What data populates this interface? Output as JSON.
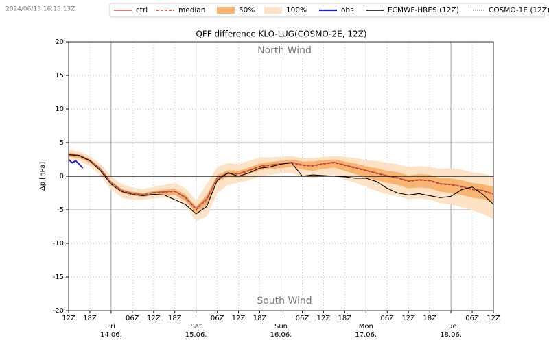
{
  "chart_data": {
    "type": "line",
    "timestamp": "2024/06/13 16:15:13Z",
    "title": "QFF difference KLO-LUG(COSMO-2E, 12Z)",
    "y_label": "Δp [hPa]",
    "annotations": [
      "North Wind",
      "South Wind"
    ],
    "xlim": [
      0,
      120
    ],
    "ylim": [
      -20,
      20
    ],
    "yticks": [
      -20,
      -15,
      -10,
      -5,
      0,
      5,
      10,
      15,
      20
    ],
    "ref_lines": [
      -5,
      5
    ],
    "zero_line": 0,
    "grid": true,
    "legend": "top-right",
    "xticks": [
      {
        "value": 0,
        "label": "12Z"
      },
      {
        "value": 6,
        "label": "18Z"
      },
      {
        "value": 12,
        "label": "Fri",
        "date": "14.06."
      },
      {
        "value": 18,
        "label": "06Z"
      },
      {
        "value": 24,
        "label": "12Z"
      },
      {
        "value": 30,
        "label": "18Z"
      },
      {
        "value": 36,
        "label": "Sat",
        "date": "15.06."
      },
      {
        "value": 42,
        "label": "06Z"
      },
      {
        "value": 48,
        "label": "12Z"
      },
      {
        "value": 54,
        "label": "18Z"
      },
      {
        "value": 60,
        "label": "Sun",
        "date": "16.06."
      },
      {
        "value": 66,
        "label": "06Z"
      },
      {
        "value": 72,
        "label": "12Z"
      },
      {
        "value": 78,
        "label": "18Z"
      },
      {
        "value": 84,
        "label": "Mon",
        "date": "17.06."
      },
      {
        "value": 90,
        "label": "06Z"
      },
      {
        "value": 96,
        "label": "12Z"
      },
      {
        "value": 102,
        "label": "18Z"
      },
      {
        "value": 108,
        "label": "Tue",
        "date": "18.06."
      },
      {
        "value": 114,
        "label": "06Z"
      },
      {
        "value": 120,
        "label": "12Z"
      }
    ],
    "x": [
      0,
      3,
      6,
      9,
      12,
      15,
      18,
      21,
      24,
      27,
      30,
      33,
      36,
      39,
      42,
      45,
      48,
      51,
      54,
      57,
      60,
      63,
      66,
      69,
      72,
      75,
      78,
      81,
      84,
      87,
      90,
      93,
      96,
      99,
      102,
      105,
      108,
      111,
      114,
      117,
      120
    ],
    "series": [
      {
        "name": "ctrl",
        "color": "#b85450",
        "style": "solid",
        "values": [
          3.3,
          3.1,
          2.4,
          1.1,
          -0.9,
          -2.1,
          -2.5,
          -2.7,
          -2.4,
          -2.3,
          -2.2,
          -3.1,
          -4.8,
          -3.3,
          -0.2,
          0.5,
          0.4,
          0.9,
          1.5,
          1.7,
          1.9,
          2.1,
          1.7,
          1.6,
          1.9,
          2.1,
          1.7,
          1.3,
          0.9,
          0.5,
          0.1,
          -0.2,
          -0.7,
          -0.5,
          -0.6,
          -1.1,
          -1.2,
          -1.5,
          -1.9,
          -2.1,
          -2.6
        ]
      },
      {
        "name": "median",
        "color": "#c0392b",
        "style": "dashed",
        "values": [
          3.2,
          3.0,
          2.3,
          1.0,
          -1.0,
          -2.2,
          -2.6,
          -2.8,
          -2.5,
          -2.4,
          -2.3,
          -3.2,
          -5.0,
          -3.5,
          -0.3,
          0.4,
          0.3,
          0.8,
          1.4,
          1.6,
          1.8,
          2.0,
          1.6,
          1.5,
          1.8,
          2.0,
          1.6,
          1.2,
          0.8,
          0.4,
          0.0,
          -0.3,
          -0.8,
          -0.6,
          -0.7,
          -1.2,
          -1.3,
          -1.6,
          -2.0,
          -2.2,
          -2.7
        ]
      },
      {
        "name": "50%",
        "color": "#f9b470",
        "style": "band",
        "low": [
          2.9,
          2.7,
          2.0,
          0.7,
          -1.3,
          -2.5,
          -2.9,
          -3.1,
          -2.8,
          -2.8,
          -2.8,
          -3.7,
          -5.5,
          -4.3,
          -0.8,
          -0.1,
          -0.2,
          0.3,
          0.9,
          1.1,
          1.2,
          1.4,
          1.0,
          0.8,
          1.1,
          1.3,
          0.8,
          0.3,
          -0.2,
          -0.6,
          -1.0,
          -1.3,
          -1.8,
          -1.7,
          -1.8,
          -2.3,
          -2.5,
          -2.8,
          -3.2,
          -3.4,
          -3.9
        ],
        "high": [
          3.5,
          3.3,
          2.6,
          1.3,
          -0.7,
          -1.9,
          -2.3,
          -2.5,
          -2.2,
          -2.0,
          -1.9,
          -2.7,
          -4.5,
          -2.8,
          0.2,
          0.9,
          0.8,
          1.3,
          1.9,
          2.1,
          2.3,
          2.5,
          2.2,
          2.2,
          2.4,
          2.5,
          2.2,
          1.9,
          1.5,
          1.2,
          0.8,
          0.6,
          0.1,
          0.3,
          0.2,
          -0.3,
          -0.3,
          -0.6,
          -1.0,
          -1.2,
          -1.6
        ]
      },
      {
        "name": "100%",
        "color": "#fde2c6",
        "style": "band",
        "low": [
          2.5,
          2.3,
          1.5,
          0.1,
          -2.0,
          -3.2,
          -3.5,
          -3.5,
          -3.3,
          -3.2,
          -3.4,
          -4.5,
          -6.7,
          -6.0,
          -2.5,
          -1.3,
          -1.0,
          -0.6,
          0.0,
          0.2,
          0.4,
          0.5,
          -0.1,
          -0.3,
          0.0,
          0.2,
          -0.5,
          -1.0,
          -1.6,
          -2.2,
          -2.7,
          -3.0,
          -3.4,
          -3.3,
          -3.5,
          -4.0,
          -4.2,
          -4.6,
          -5.1,
          -5.6,
          -6.4
        ],
        "high": [
          3.9,
          3.7,
          3.0,
          1.8,
          0.0,
          -1.2,
          -1.7,
          -1.9,
          -1.6,
          -1.3,
          -1.0,
          -1.8,
          -3.6,
          -1.2,
          1.4,
          2.0,
          1.8,
          2.3,
          2.8,
          2.8,
          2.9,
          3.0,
          2.7,
          2.7,
          2.9,
          3.0,
          2.9,
          2.7,
          2.4,
          2.3,
          2.0,
          1.8,
          1.4,
          1.5,
          1.4,
          1.1,
          1.2,
          1.0,
          0.6,
          0.4,
          0.0
        ]
      },
      {
        "name": "obs",
        "color": "#1f1fd6",
        "style": "thick",
        "x": [
          0,
          1,
          2,
          3,
          4
        ],
        "values": [
          2.5,
          2.0,
          2.3,
          1.8,
          1.2
        ]
      },
      {
        "name": "ECMWF-HRES (12Z)",
        "color": "#000000",
        "style": "solid",
        "values": [
          3.2,
          3.1,
          2.3,
          0.8,
          -1.2,
          -2.3,
          -2.7,
          -2.9,
          -2.7,
          -2.8,
          -3.5,
          -4.2,
          -5.6,
          -4.5,
          -0.6,
          0.5,
          0.0,
          0.5,
          1.2,
          1.4,
          1.8,
          2.0,
          0.0,
          0.2,
          0.1,
          0.0,
          -0.1,
          -0.3,
          -0.3,
          -0.8,
          -1.8,
          -2.5,
          -2.8,
          -2.6,
          -2.9,
          -3.2,
          -3.0,
          -2.0,
          -1.6,
          -2.7,
          -4.2
        ]
      },
      {
        "name": "COSMO-1E (12Z)",
        "color": "#888888",
        "style": "dotted",
        "values": [
          3.1,
          2.9,
          2.2,
          0.9,
          -1.1,
          -2.3,
          -2.7,
          -2.8,
          -2.5,
          -2.5,
          -2.6,
          -3.4,
          -5.2,
          -3.8,
          -0.5,
          0.3,
          null,
          null,
          null,
          null,
          null,
          null,
          null,
          null,
          null,
          null,
          null,
          null,
          null,
          null,
          null,
          null,
          null,
          null,
          null,
          null,
          null,
          null,
          null,
          null,
          null
        ]
      }
    ]
  }
}
